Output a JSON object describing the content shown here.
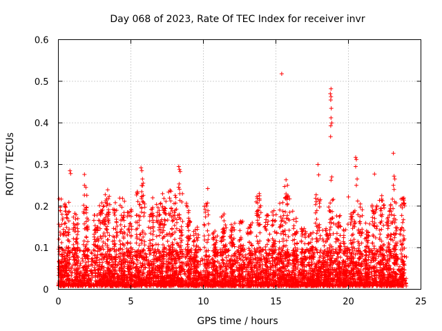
{
  "colors": {
    "points": "#ff0000",
    "grid": "#a0a0a0",
    "axis": "#000000",
    "background": "#ffffff"
  },
  "chart_data": {
    "type": "scatter",
    "title": "Day 068 of 2023, Rate Of TEC Index for receiver invr",
    "xlabel": "GPS time / hours",
    "ylabel": "ROTI / TECUs",
    "xlim": [
      0,
      25
    ],
    "ylim": [
      0,
      0.6
    ],
    "xticks": [
      0,
      5,
      10,
      15,
      20,
      25
    ],
    "yticks": [
      0,
      0.1,
      0.2,
      0.3,
      0.4,
      0.5,
      0.6
    ],
    "xtick_labels": [
      "0",
      "5",
      "10",
      "15",
      "20",
      "25"
    ],
    "ytick_labels": [
      "0",
      "0.1",
      "0.2",
      "0.3",
      "0.4",
      "0.5",
      "0.6"
    ],
    "grid": true,
    "marker": "+",
    "series": [
      {
        "name": "ROTI",
        "description": "dense cloud of ROTI samples from 0 to 24 h, mostly 0.01-0.15 TECU/s",
        "outliers": [
          {
            "x": 0.8,
            "y": 0.285
          },
          {
            "x": 0.85,
            "y": 0.278
          },
          {
            "x": 1.8,
            "y": 0.276
          },
          {
            "x": 1.8,
            "y": 0.25
          },
          {
            "x": 1.9,
            "y": 0.245
          },
          {
            "x": 3.4,
            "y": 0.239
          },
          {
            "x": 5.7,
            "y": 0.292
          },
          {
            "x": 5.75,
            "y": 0.285
          },
          {
            "x": 5.8,
            "y": 0.265
          },
          {
            "x": 5.85,
            "y": 0.255
          },
          {
            "x": 7.7,
            "y": 0.238
          },
          {
            "x": 8.3,
            "y": 0.295
          },
          {
            "x": 8.35,
            "y": 0.288
          },
          {
            "x": 8.4,
            "y": 0.283
          },
          {
            "x": 10.3,
            "y": 0.242
          },
          {
            "x": 15.4,
            "y": 0.518
          },
          {
            "x": 15.7,
            "y": 0.263
          },
          {
            "x": 15.8,
            "y": 0.25
          },
          {
            "x": 15.6,
            "y": 0.247
          },
          {
            "x": 17.9,
            "y": 0.3
          },
          {
            "x": 17.95,
            "y": 0.275
          },
          {
            "x": 18.8,
            "y": 0.482
          },
          {
            "x": 18.75,
            "y": 0.47
          },
          {
            "x": 18.8,
            "y": 0.463
          },
          {
            "x": 18.78,
            "y": 0.455
          },
          {
            "x": 18.82,
            "y": 0.435
          },
          {
            "x": 18.8,
            "y": 0.412
          },
          {
            "x": 18.85,
            "y": 0.4
          },
          {
            "x": 18.78,
            "y": 0.393
          },
          {
            "x": 18.77,
            "y": 0.367
          },
          {
            "x": 18.85,
            "y": 0.27
          },
          {
            "x": 18.8,
            "y": 0.262
          },
          {
            "x": 20.5,
            "y": 0.317
          },
          {
            "x": 20.55,
            "y": 0.312
          },
          {
            "x": 20.5,
            "y": 0.295
          },
          {
            "x": 20.6,
            "y": 0.265
          },
          {
            "x": 20.55,
            "y": 0.25
          },
          {
            "x": 21.8,
            "y": 0.277
          },
          {
            "x": 23.1,
            "y": 0.327
          },
          {
            "x": 23.15,
            "y": 0.272
          },
          {
            "x": 23.2,
            "y": 0.265
          },
          {
            "x": 23.1,
            "y": 0.25
          },
          {
            "x": 23.15,
            "y": 0.24
          },
          {
            "x": 20.0,
            "y": 0.222
          },
          {
            "x": 22.3,
            "y": 0.225
          }
        ],
        "bursts": [
          {
            "x": 0.2,
            "peak": 0.21
          },
          {
            "x": 0.6,
            "peak": 0.2
          },
          {
            "x": 1.2,
            "peak": 0.18
          },
          {
            "x": 1.9,
            "peak": 0.22
          },
          {
            "x": 2.6,
            "peak": 0.17
          },
          {
            "x": 3.0,
            "peak": 0.2
          },
          {
            "x": 3.4,
            "peak": 0.22
          },
          {
            "x": 3.9,
            "peak": 0.2
          },
          {
            "x": 4.4,
            "peak": 0.21
          },
          {
            "x": 4.9,
            "peak": 0.19
          },
          {
            "x": 5.5,
            "peak": 0.23
          },
          {
            "x": 5.9,
            "peak": 0.24
          },
          {
            "x": 6.4,
            "peak": 0.21
          },
          {
            "x": 6.9,
            "peak": 0.2
          },
          {
            "x": 7.3,
            "peak": 0.22
          },
          {
            "x": 7.7,
            "peak": 0.23
          },
          {
            "x": 8.0,
            "peak": 0.22
          },
          {
            "x": 8.4,
            "peak": 0.25
          },
          {
            "x": 9.0,
            "peak": 0.2
          },
          {
            "x": 9.5,
            "peak": 0.14
          },
          {
            "x": 10.2,
            "peak": 0.2
          },
          {
            "x": 10.8,
            "peak": 0.13
          },
          {
            "x": 11.4,
            "peak": 0.18
          },
          {
            "x": 12.0,
            "peak": 0.15
          },
          {
            "x": 12.6,
            "peak": 0.16
          },
          {
            "x": 13.2,
            "peak": 0.15
          },
          {
            "x": 13.8,
            "peak": 0.22
          },
          {
            "x": 14.4,
            "peak": 0.17
          },
          {
            "x": 14.9,
            "peak": 0.18
          },
          {
            "x": 15.4,
            "peak": 0.2
          },
          {
            "x": 15.8,
            "peak": 0.22
          },
          {
            "x": 16.3,
            "peak": 0.18
          },
          {
            "x": 16.9,
            "peak": 0.14
          },
          {
            "x": 17.4,
            "peak": 0.13
          },
          {
            "x": 17.9,
            "peak": 0.22
          },
          {
            "x": 18.4,
            "peak": 0.15
          },
          {
            "x": 18.8,
            "peak": 0.21
          },
          {
            "x": 19.3,
            "peak": 0.17
          },
          {
            "x": 19.8,
            "peak": 0.15
          },
          {
            "x": 20.3,
            "peak": 0.19
          },
          {
            "x": 20.8,
            "peak": 0.21
          },
          {
            "x": 21.3,
            "peak": 0.15
          },
          {
            "x": 21.8,
            "peak": 0.2
          },
          {
            "x": 22.3,
            "peak": 0.21
          },
          {
            "x": 22.8,
            "peak": 0.2
          },
          {
            "x": 23.2,
            "peak": 0.22
          },
          {
            "x": 23.7,
            "peak": 0.21
          }
        ]
      }
    ]
  }
}
